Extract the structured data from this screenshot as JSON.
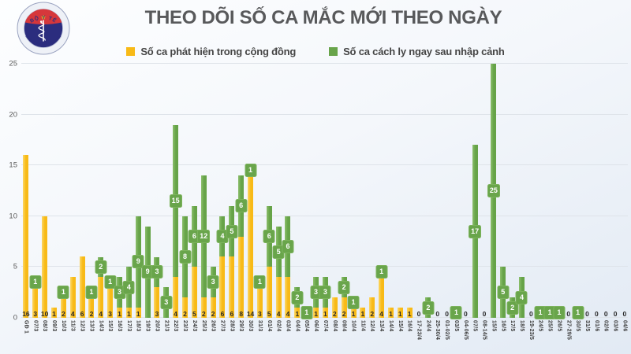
{
  "logo": {
    "top_text": "BỘ Y TẾ",
    "bottom_text": "MINISTRY OF HEALTH",
    "colors": {
      "ring": "#eef1f7",
      "navy": "#2b2d7e",
      "red": "#d6373b",
      "star": "#f8d515"
    }
  },
  "chart_data": {
    "type": "bar",
    "stacked": true,
    "title": "THEO DÕI SỐ CA MẮC MỚI THEO NGÀY",
    "grid": true,
    "legend_position": "top",
    "ylim": [
      0,
      25
    ],
    "yticks": [
      0,
      5,
      10,
      15,
      20,
      25
    ],
    "categories": [
      "GĐ 1",
      "07/3",
      "08/3",
      "09/3",
      "10/3",
      "11/3",
      "12/3",
      "13/3",
      "14/3",
      "15/3",
      "16/3",
      "17/3",
      "18/3",
      "19/3",
      "20/3",
      "21/3",
      "22/3",
      "23/3",
      "24/3",
      "25/3",
      "26/3",
      "27/3",
      "28/3",
      "29/3",
      "30/3",
      "31/3",
      "01/4",
      "02/4",
      "03/4",
      "04/4",
      "05/4",
      "06/4",
      "07/4",
      "08/4",
      "09/4",
      "10/4",
      "11/4",
      "12/4",
      "13/4",
      "14/4",
      "15/4",
      "16/4",
      "17-23/4",
      "24/4",
      "25-30/4",
      "01-02/5",
      "03/5",
      "04-06/5",
      "07/5",
      "08-14/5",
      "15/5",
      "16/5",
      "17/5",
      "18/5",
      "19-23/5",
      "24/5",
      "25/5",
      "26/5",
      "27-29/5",
      "30/5",
      "31/5",
      "01/6",
      "02/6",
      "03/6",
      "04/6"
    ],
    "series": [
      {
        "name": "Số ca phát hiện trong cộng đồng",
        "color": "#F8BA17",
        "values": [
          16,
          3,
          10,
          1,
          2,
          4,
          6,
          2,
          4,
          3,
          1,
          1,
          1,
          0,
          3,
          0,
          4,
          2,
          5,
          2,
          2,
          6,
          6,
          8,
          14,
          3,
          5,
          4,
          4,
          1,
          0,
          1,
          1,
          2,
          2,
          1,
          1,
          2,
          4,
          1,
          1,
          1,
          0,
          0,
          0,
          0,
          0,
          0,
          0,
          0,
          0,
          0,
          0,
          0,
          0,
          0,
          0,
          0,
          0,
          0,
          0,
          0,
          0,
          0,
          0
        ]
      },
      {
        "name": "Số ca cách ly ngay sau nhập cảnh",
        "color": "#68A44A",
        "values": [
          0,
          1,
          0,
          0,
          1,
          0,
          0,
          1,
          2,
          1,
          3,
          4,
          9,
          9,
          3,
          3,
          15,
          8,
          6,
          12,
          3,
          4,
          5,
          6,
          1,
          1,
          6,
          5,
          6,
          2,
          1,
          3,
          3,
          0,
          2,
          1,
          0,
          0,
          1,
          0,
          0,
          0,
          0,
          2,
          0,
          0,
          1,
          0,
          17,
          0,
          25,
          5,
          2,
          4,
          0,
          1,
          1,
          1,
          0,
          1,
          0,
          0,
          0,
          0,
          0
        ]
      }
    ]
  }
}
